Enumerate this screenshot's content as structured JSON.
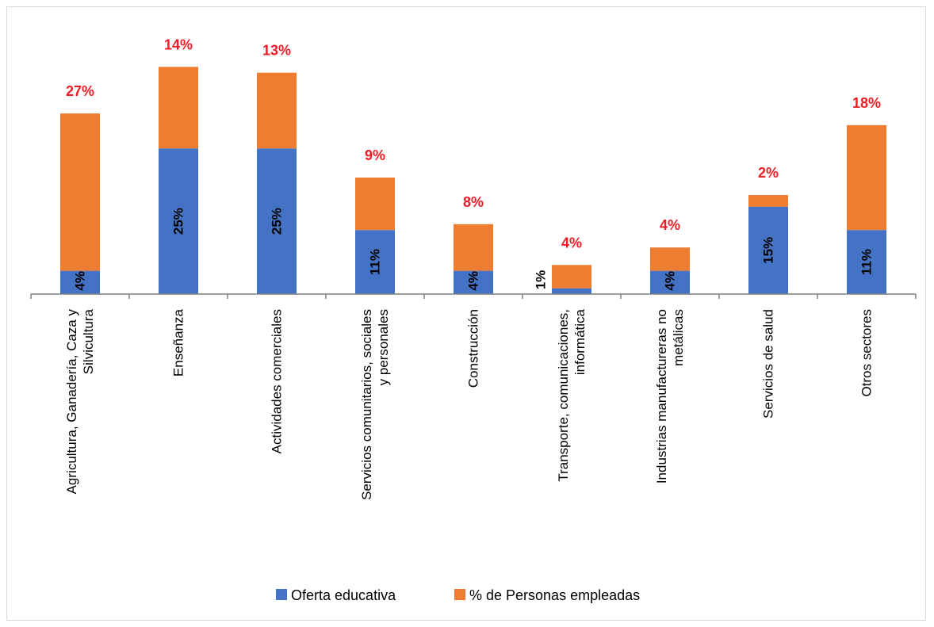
{
  "chart_data": {
    "type": "bar",
    "stacked": true,
    "categories": [
      [
        "Agricultura, Ganadería, Caza y",
        "Silvicultura"
      ],
      [
        "Enseñanza"
      ],
      [
        "Actividades comerciales"
      ],
      [
        "Servicios comunitarios, sociales",
        "y personales"
      ],
      [
        "Construcción"
      ],
      [
        "Transporte, comunicaciones,",
        "informática"
      ],
      [
        "Industrias manufactureras no",
        "metálicas"
      ],
      [
        "Servicios de salud"
      ],
      [
        "Otros sectores"
      ]
    ],
    "series": [
      {
        "name": "Oferta educativa",
        "color": "#4472c4",
        "values": [
          4,
          25,
          25,
          11,
          4,
          1,
          4,
          15,
          11
        ],
        "labels": [
          "4%",
          "25%",
          "25%",
          "11%",
          "4%",
          "1%",
          "4%",
          "15%",
          "11%"
        ]
      },
      {
        "name": "% de Personas empleadas",
        "color": "#ed7d31",
        "values": [
          27,
          14,
          13,
          9,
          8,
          4,
          4,
          2,
          18
        ],
        "labels": [
          "27%",
          "14%",
          "13%",
          "9%",
          "8%",
          "4%",
          "4%",
          "2%",
          "18%"
        ]
      }
    ],
    "legend_position": "bottom",
    "grid": false,
    "title": "",
    "xlabel": "",
    "ylabel": ""
  }
}
